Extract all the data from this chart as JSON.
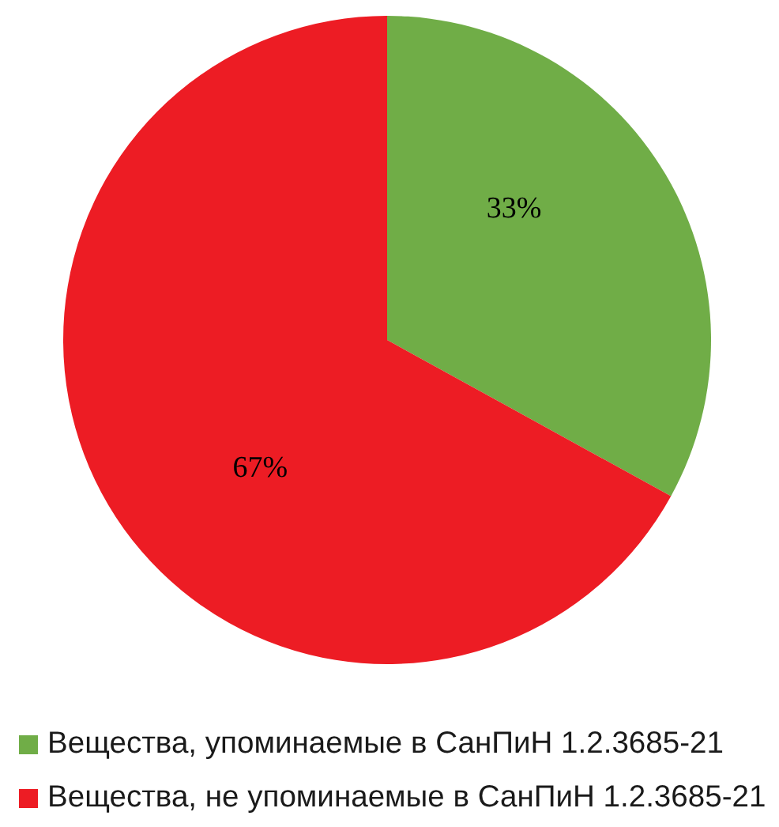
{
  "chart_data": {
    "type": "pie",
    "categories": [
      "Вещества, упоминаемые в СанПиН 1.2.3685-21",
      "Вещества, не упоминаемые в СанПиН 1.2.3685-21"
    ],
    "values": [
      33,
      67
    ],
    "colors": [
      "#70ad47",
      "#ed1c24"
    ],
    "value_labels": [
      "33%",
      "67%"
    ],
    "legend": "bottom"
  }
}
